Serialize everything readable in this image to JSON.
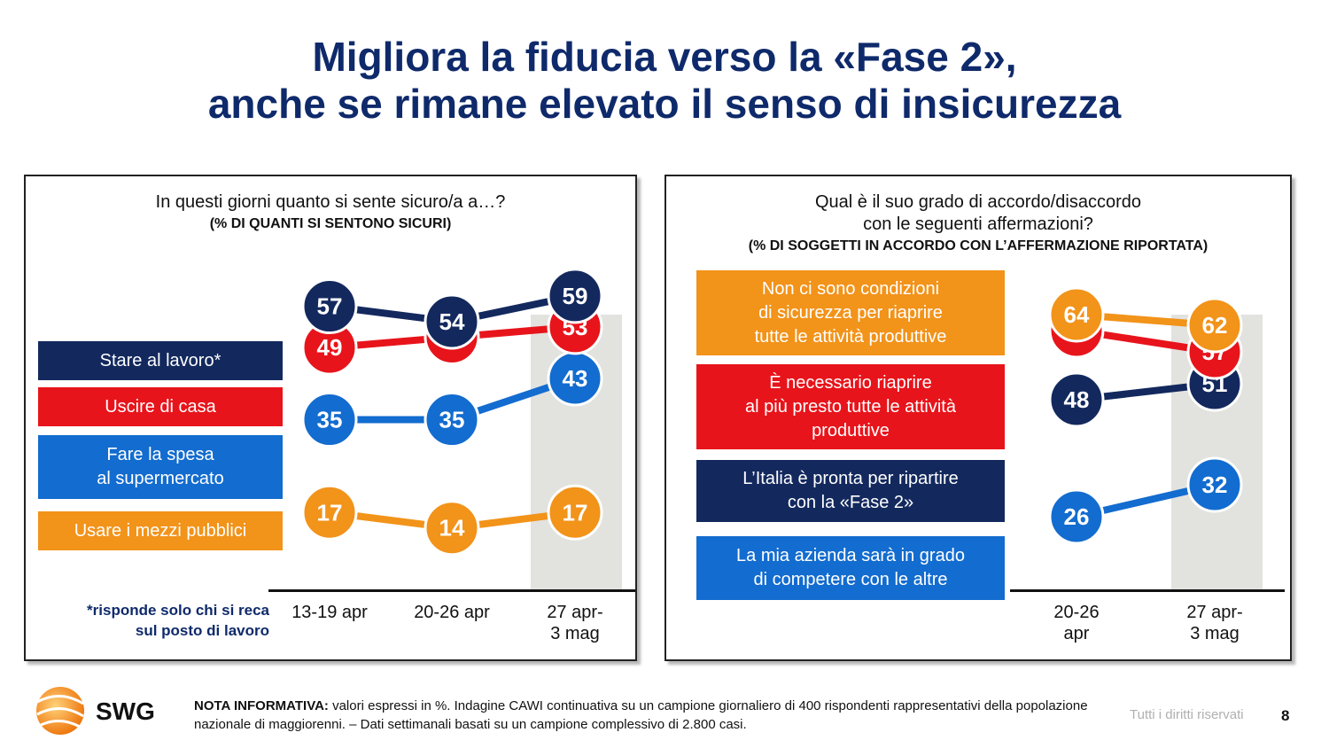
{
  "title": {
    "line1": "Migliora la fiducia verso la «Fase 2»,",
    "line2": "anche se rimane elevato il senso di insicurezza"
  },
  "colors": {
    "navy": "#13295e",
    "red": "#e8141b",
    "blue": "#136ccf",
    "orange": "#f2931a",
    "title": "#0f2a6b"
  },
  "chart_data": [
    {
      "type": "line",
      "title": "In questi giorni quanto si sente sicuro/a a…?",
      "subtitle": "(% DI QUANTI SI SENTONO SICURI)",
      "categories": [
        "13-19 apr",
        "20-26 apr",
        "27 apr-3 mag"
      ],
      "category_lines": [
        [
          "13-19 apr"
        ],
        [
          "20-26 apr"
        ],
        [
          "27 apr-",
          "3 mag"
        ]
      ],
      "series": [
        {
          "name": "Stare al lavoro*",
          "color": "#13295e",
          "values": [
            57,
            54,
            59
          ]
        },
        {
          "name": "Uscire di casa",
          "color": "#e8141b",
          "values": [
            49,
            51,
            53
          ]
        },
        {
          "name": "Fare la spesa\nal supermercato",
          "color": "#136ccf",
          "values": [
            35,
            35,
            43
          ]
        },
        {
          "name": "Usare i mezzi pubblici",
          "color": "#f2931a",
          "values": [
            17,
            14,
            17
          ]
        }
      ],
      "highlight_last": true,
      "footnote": [
        "*risponde solo chi si reca",
        "sul posto di lavoro"
      ]
    },
    {
      "type": "line",
      "title": [
        "Qual è il suo grado di accordo/disaccordo",
        "con le seguenti affermazioni?"
      ],
      "subtitle": "(% DI SOGGETTI IN ACCORDO CON L’AFFERMAZIONE RIPORTATA)",
      "categories": [
        "20-26 apr",
        "27 apr-3 mag"
      ],
      "category_lines": [
        [
          "20-26",
          "apr"
        ],
        [
          "27 apr-",
          "3 mag"
        ]
      ],
      "series": [
        {
          "name": "Non ci sono condizioni\ndi sicurezza  per riaprire\ntutte le attività produttive",
          "color": "#f2931a",
          "values": [
            64,
            62
          ]
        },
        {
          "name": "È necessario riaprire\nal più presto tutte le attività\nproduttive",
          "color": "#e8141b",
          "values": [
            61,
            57
          ]
        },
        {
          "name": "L’Italia è pronta per ripartire\ncon la «Fase 2»",
          "color": "#13295e",
          "values": [
            48,
            51
          ]
        },
        {
          "name": "La mia azienda sarà in grado\ndi competere con le altre",
          "color": "#136ccf",
          "values": [
            26,
            32
          ]
        }
      ],
      "highlight_last": true
    }
  ],
  "footer": {
    "note_label": "NOTA INFORMATIVA:",
    "note_text": " valori espressi in %. Indagine CAWI continuativa su un campione giornaliero di 400 rispondenti rappresentativi della popolazione nazionale di maggiorenni. – Dati settimanali basati su un campione complessivo di 2.800 casi.",
    "rights": "Tutti i diritti riservati",
    "page": "8",
    "logo_text": "SWG"
  }
}
